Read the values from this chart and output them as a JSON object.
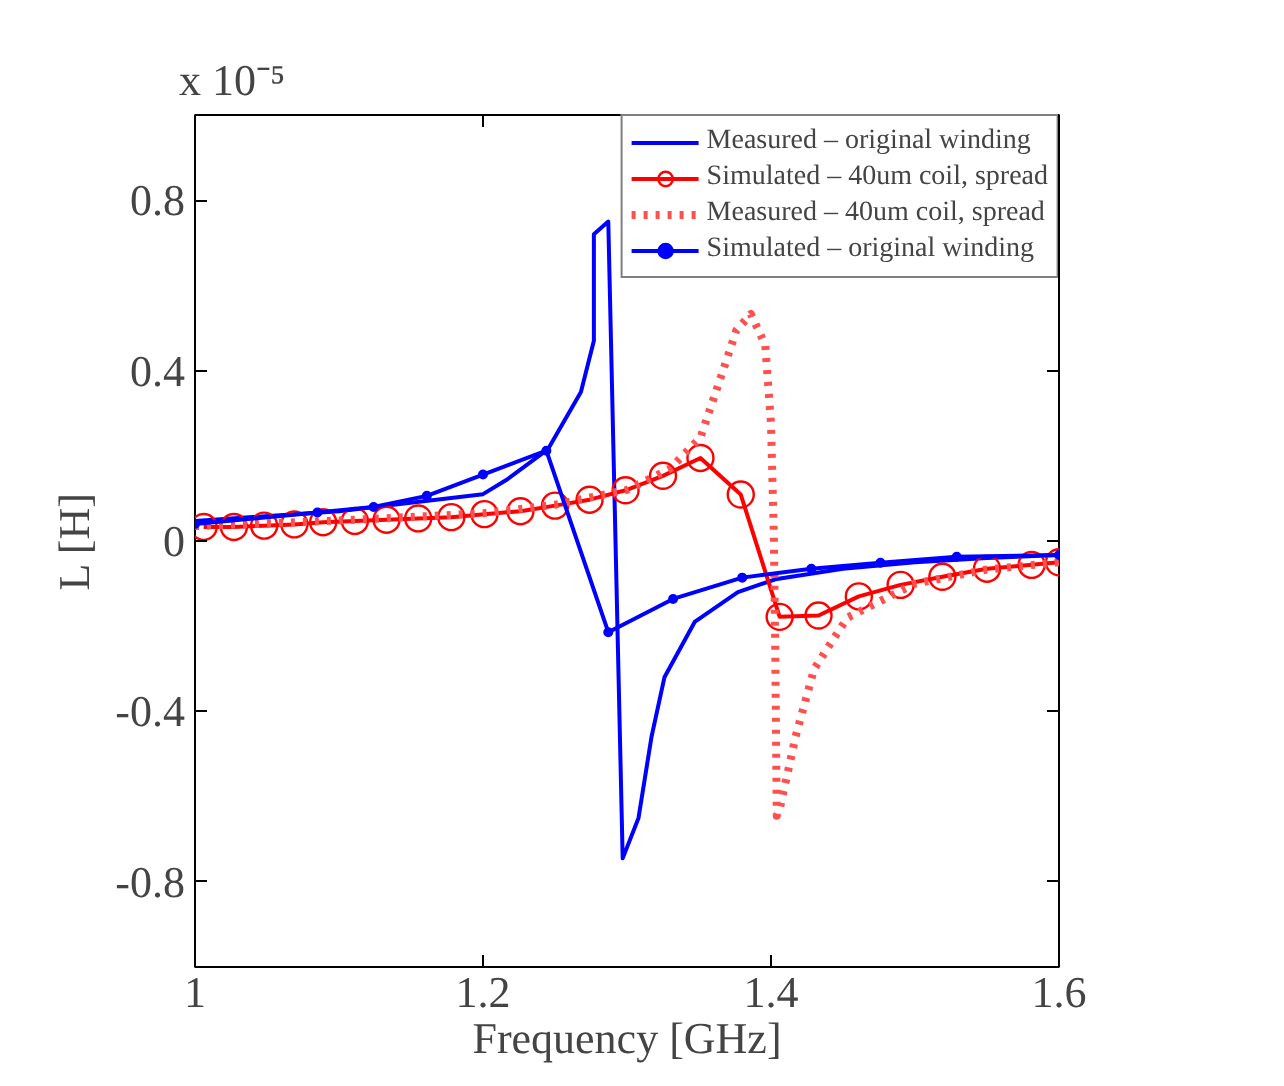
{
  "chart_data": {
    "type": "line",
    "xlabel": "Frequency [GHz]",
    "ylabel": "L [H]",
    "annotations": [
      "x 10⁻⁵"
    ],
    "xlim": [
      1,
      1.6
    ],
    "ylim": [
      -1,
      1
    ],
    "xticks": [
      1,
      1.2,
      1.4,
      1.6
    ],
    "yticks": [
      -0.8,
      -0.4,
      0,
      0.4,
      0.8
    ],
    "grid": false,
    "legend": "top right",
    "series": [
      {
        "name": "Measured – original winding",
        "color": "#0000ff",
        "marker": "none",
        "line_style": "solid",
        "x": [
          1.0,
          1.1,
          1.2,
          1.217,
          1.245,
          1.268,
          1.277,
          1.277,
          1.287,
          1.297,
          1.308,
          1.317,
          1.326,
          1.347,
          1.377,
          1.403,
          1.45,
          1.5,
          1.55,
          1.6
        ],
        "values": [
          0.047,
          0.07,
          0.11,
          0.145,
          0.215,
          0.35,
          0.47,
          0.72,
          0.75,
          -0.745,
          -0.65,
          -0.46,
          -0.32,
          -0.19,
          -0.12,
          -0.09,
          -0.065,
          -0.05,
          -0.04,
          -0.033
        ]
      },
      {
        "name": "Simulated – 40um coil, spread",
        "color": "#ff0000",
        "marker": "circle",
        "line_style": "solid",
        "x": [
          1.006,
          1.027,
          1.048,
          1.069,
          1.089,
          1.111,
          1.133,
          1.155,
          1.178,
          1.201,
          1.226,
          1.25,
          1.274,
          1.299,
          1.325,
          1.351,
          1.379,
          1.406,
          1.433,
          1.461,
          1.49,
          1.519,
          1.55,
          1.581,
          1.6
        ],
        "values": [
          0.033,
          0.033,
          0.036,
          0.039,
          0.044,
          0.047,
          0.05,
          0.053,
          0.056,
          0.063,
          0.07,
          0.083,
          0.097,
          0.119,
          0.153,
          0.195,
          0.109,
          -0.178,
          -0.175,
          -0.13,
          -0.103,
          -0.084,
          -0.065,
          -0.056,
          -0.05
        ]
      },
      {
        "name": "Measured – 40um coil, spread",
        "color": "#ff5050",
        "marker": "none",
        "line_style": "dotted",
        "x": [
          1.0,
          1.1,
          1.2,
          1.25,
          1.3,
          1.33,
          1.351,
          1.365,
          1.376,
          1.386,
          1.396,
          1.4,
          1.402,
          1.403,
          1.404,
          1.406,
          1.417,
          1.43,
          1.453,
          1.5,
          1.55,
          1.6
        ],
        "values": [
          0.035,
          0.048,
          0.065,
          0.085,
          0.12,
          0.17,
          0.243,
          0.383,
          0.495,
          0.533,
          0.46,
          0.276,
          0.01,
          -0.27,
          -0.645,
          -0.63,
          -0.46,
          -0.3,
          -0.18,
          -0.1,
          -0.067,
          -0.05
        ]
      },
      {
        "name": "Simulated – original winding",
        "color": "#0000ff",
        "marker": "dot",
        "line_style": "solid",
        "x": [
          1.0,
          1.085,
          1.124,
          1.161,
          1.2,
          1.244,
          1.287,
          1.332,
          1.38,
          1.428,
          1.476,
          1.529,
          1.6
        ],
        "values": [
          0.04,
          0.067,
          0.08,
          0.106,
          0.156,
          0.212,
          -0.214,
          -0.136,
          -0.086,
          -0.065,
          -0.051,
          -0.037,
          -0.033
        ]
      }
    ]
  }
}
